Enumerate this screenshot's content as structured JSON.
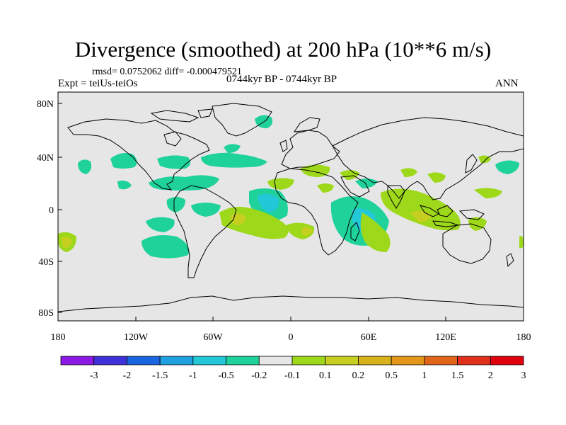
{
  "header": {
    "title": "Divergence (smoothed) at 200 hPa (10**6 m/s)",
    "stats": "rmsd= 0.0752062 diff= -0.000479521",
    "experiment": "Expt = teiUs-teiOs",
    "period": "0744kyr BP - 0744kyr BP",
    "season": "ANN"
  },
  "axes": {
    "y_ticks": [
      "80N",
      "40N",
      "0",
      "40S",
      "80S"
    ],
    "x_ticks": [
      "180",
      "120W",
      "60W",
      "0",
      "60E",
      "120E",
      "180"
    ]
  },
  "colorbar": {
    "labels": [
      "-3",
      "-2",
      "-1.5",
      "-1",
      "-0.5",
      "-0.2",
      "-0.1",
      "0.1",
      "0.2",
      "0.5",
      "1",
      "1.5",
      "2",
      "3"
    ],
    "colors": [
      "#8b1ae6",
      "#4030d8",
      "#1a66e0",
      "#1fa0e0",
      "#22c8d8",
      "#1fd29a",
      "#e6e6e6",
      "#9ed81a",
      "#c6cf1f",
      "#d8b21a",
      "#e49618",
      "#e0641a",
      "#e0301c",
      "#e0000d"
    ]
  },
  "map": {
    "ocean_color": "#e6e6e6",
    "coast_color": "#000000"
  }
}
